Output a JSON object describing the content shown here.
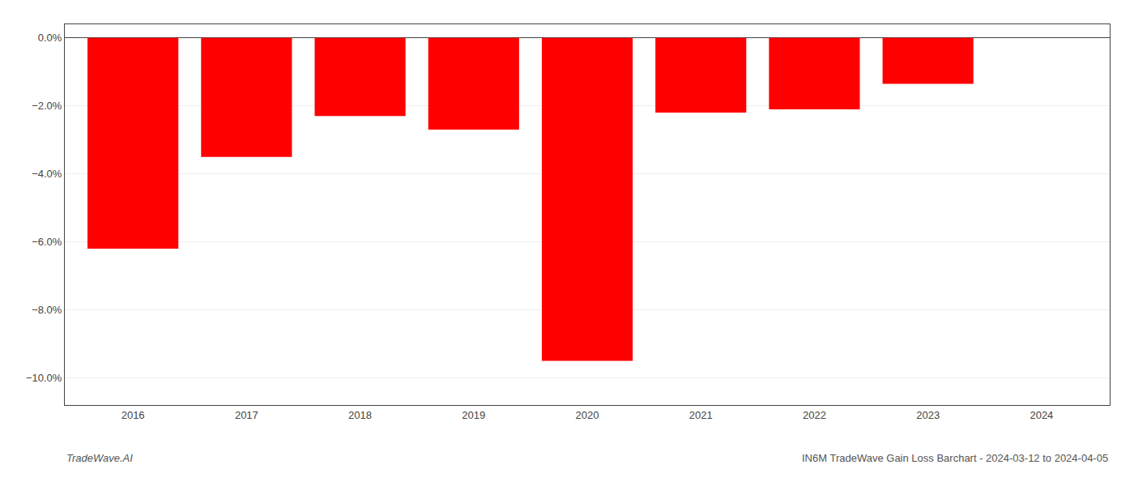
{
  "chart_data": {
    "type": "bar",
    "x": [
      2016,
      2017,
      2018,
      2019,
      2020,
      2021,
      2022,
      2023,
      2024
    ],
    "values": [
      -6.2,
      -3.5,
      -2.3,
      -2.7,
      -9.5,
      -2.2,
      -2.1,
      -1.35,
      0.0
    ],
    "color": "#ff0000",
    "xlim": [
      2015.4,
      2024.6
    ],
    "xticks": [
      2016,
      2017,
      2018,
      2019,
      2020,
      2021,
      2022,
      2023,
      2024
    ],
    "ylim": [
      -10.8,
      0.4
    ],
    "yticks": [
      {
        "value": 0.0,
        "label": "0.0%"
      },
      {
        "value": -2.0,
        "label": "−2.0%"
      },
      {
        "value": -4.0,
        "label": "−4.0%"
      },
      {
        "value": -6.0,
        "label": "−6.0%"
      },
      {
        "value": -8.0,
        "label": "−8.0%"
      },
      {
        "value": -10.0,
        "label": "−10.0%"
      }
    ],
    "grid": true,
    "annotations": [
      "TradeWave.AI",
      "IN6M TradeWave Gain Loss Barchart - 2024-03-12 to 2024-04-05"
    ]
  }
}
